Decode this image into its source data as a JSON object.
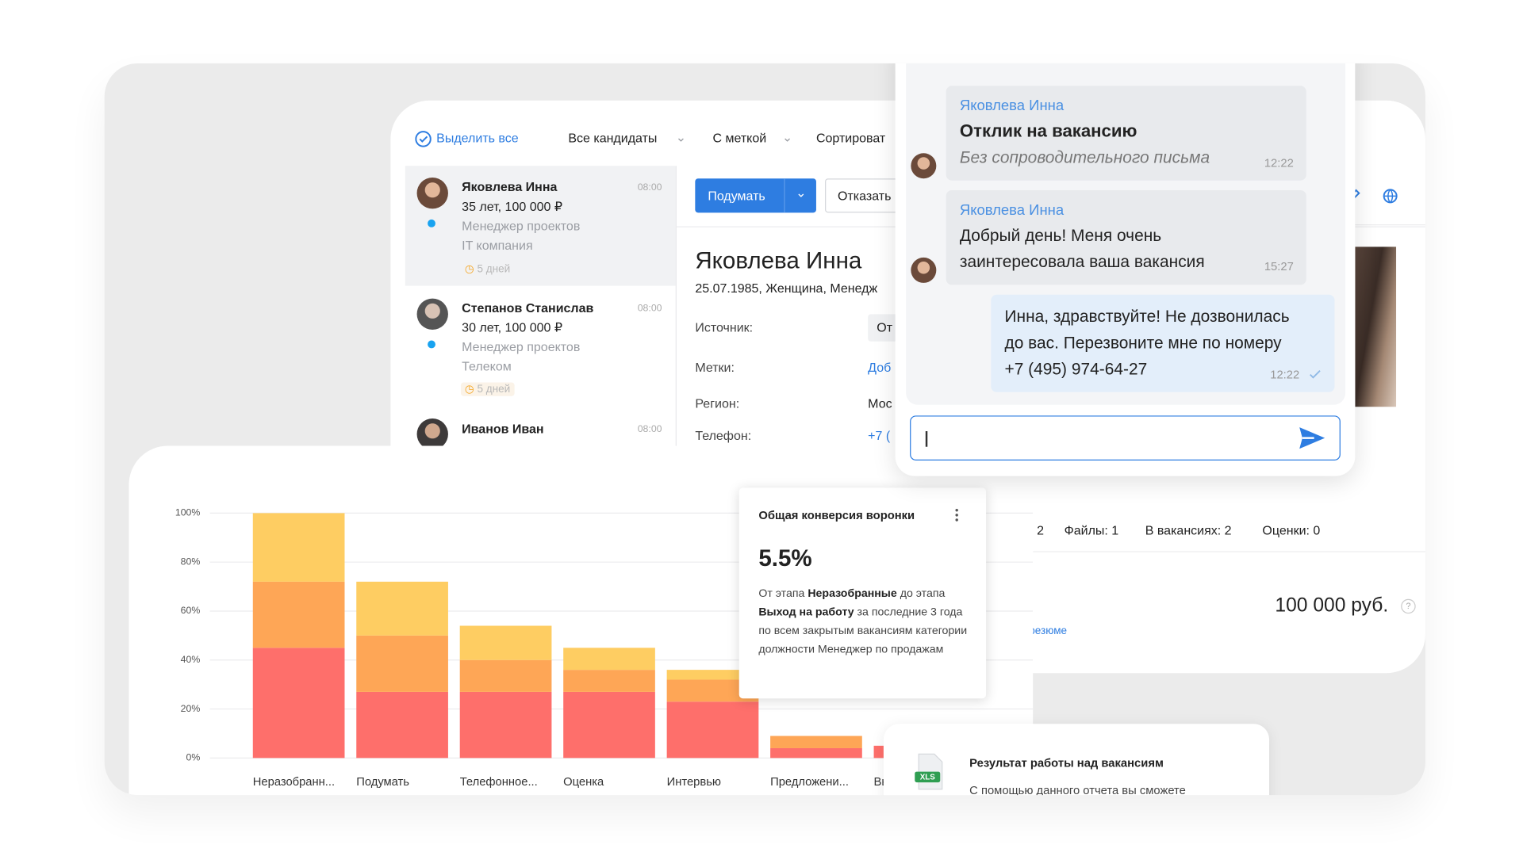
{
  "toolbar": {
    "select_all": "Выделить все",
    "filters": [
      "Все кандидаты",
      "С меткой",
      "Сортироват"
    ]
  },
  "candidates": [
    {
      "name": "Яковлева Инна",
      "time": "08:00",
      "details": "35 лет, 100 000 ₽",
      "position": "Менеджер проектов",
      "company": "IT компания",
      "days": "5 дней"
    },
    {
      "name": "Степанов Станислав",
      "time": "08:00",
      "details": "30 лет, 100 000 ₽",
      "position": "Менеджер проектов",
      "company": "Телеком",
      "days": "5 дней"
    },
    {
      "name": "Иванов Иван",
      "time": "08:00"
    }
  ],
  "profile": {
    "actions": [
      "Подумать",
      "Отказать"
    ],
    "name": "Яковлева Инна",
    "info": "25.07.1985, Женщина, Менедж",
    "fields": [
      [
        "Источник:",
        "От"
      ],
      [
        "Метки:",
        "Доб"
      ],
      [
        "Регион:",
        "Мос"
      ],
      [
        "Телефон:",
        "+7 ("
      ]
    ],
    "stats": [
      "2",
      "Файлы: 1",
      "В вакансиях: 2",
      "Оценки: 0"
    ],
    "salary": "100 000 руб.",
    "help": "?",
    "link": "резюме"
  },
  "chat": {
    "messages": [
      {
        "sender": "Яковлева Инна",
        "lines": [
          "Отклик на вакансию",
          "Без сопроводительного письма"
        ],
        "time": "12:22"
      },
      {
        "sender": "Яковлева Инна",
        "lines": [
          "Добрый день! Меня очень",
          "заинтересовала ваша вакансия"
        ],
        "time": "15:27"
      },
      {
        "lines": [
          "Инна, здравствуйте! Не дозвонилась",
          "до вас. Перезвоните мне по номеру",
          "+7 (495) 974-64-27"
        ],
        "time": "12:22"
      }
    ]
  },
  "chart_data": {
    "type": "bar",
    "stacked": true,
    "categories": [
      "Неразобранн...",
      "Подумать",
      "Телефонное...",
      "Оценка",
      "Интервью",
      "Предложени...",
      "Вы"
    ],
    "series": [
      {
        "color": "#fe6f6b",
        "values": [
          45,
          27,
          27,
          27,
          23,
          4,
          5
        ]
      },
      {
        "color": "#fea656",
        "values": [
          27,
          23,
          13,
          9,
          9,
          5,
          0
        ]
      },
      {
        "color": "#fecd62",
        "values": [
          28,
          22,
          14,
          9,
          4,
          0,
          0
        ]
      }
    ],
    "ylim": [
      0,
      100
    ],
    "yticks": [
      {
        "value": 0,
        "label": "0%"
      },
      {
        "value": 20,
        "label": "20%"
      },
      {
        "value": 40,
        "label": "40%"
      },
      {
        "value": 60,
        "label": "60%"
      },
      {
        "value": 80,
        "label": "80%"
      },
      {
        "value": 100,
        "label": "100%"
      }
    ],
    "grid": true
  },
  "tooltip": {
    "title": "Общая конверсия воронки",
    "value": "5.5%",
    "description": [
      "От этапа ",
      "Неразобранные",
      " до этапа ",
      "Выход на работу",
      " за последние 3 года по всем закрытым вакансиям категории должности Менеджер по продажам"
    ]
  },
  "report": {
    "icon": "XLS",
    "title": "Результат работы над вакансиям",
    "text": "С помощью данного отчета вы сможете"
  }
}
